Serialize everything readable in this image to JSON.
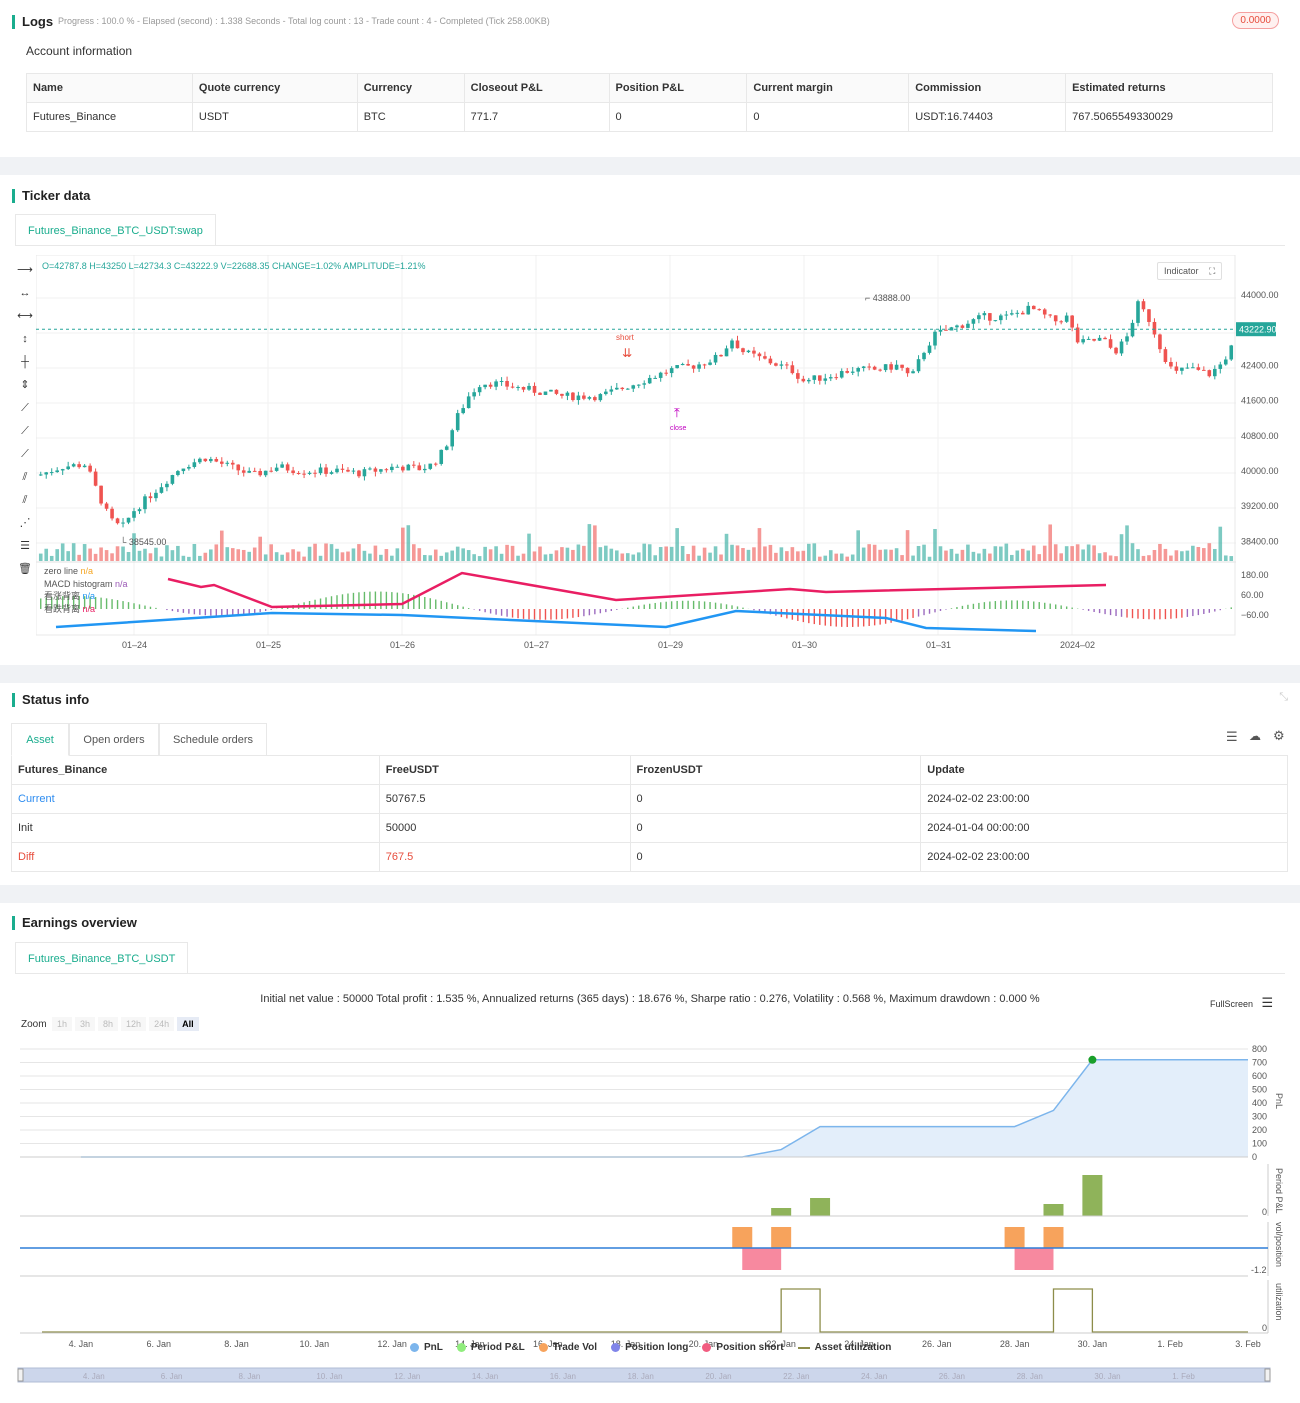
{
  "logs": {
    "title": "Logs",
    "progress": "Progress : 100.0 % - Elapsed (second) : 1.338  Seconds - Total log count : 13 - Trade count : 4 - Completed (Tick 258.00KB)",
    "badge": "0.0000",
    "account_title": "Account information",
    "columns": [
      "Name",
      "Quote currency",
      "Currency",
      "Closeout P&L",
      "Position P&L",
      "Current margin",
      "Commission",
      "Estimated returns"
    ],
    "row": [
      "Futures_Binance",
      "USDT",
      "BTC",
      "771.7",
      "0",
      "0",
      "USDT:16.74403",
      "767.5065549330029"
    ]
  },
  "ticker": {
    "title": "Ticker data",
    "tab": "Futures_Binance_BTC_USDT:swap",
    "ohlc": "O=42787.8 H=43250 L=42734.3 C=43222.9 V=22688.35 CHANGE=1.02% AMPLITUDE=1.21%",
    "indicator_btn": "Indicator",
    "last_price": "43222.90",
    "high_marker": "43888.00",
    "low_marker": "38545.00",
    "short_label": "short",
    "close_label": "close",
    "price_ticks": [
      "44000.00",
      "43200.00",
      "42400.00",
      "41600.00",
      "40800.00",
      "40000.00",
      "39200.00",
      "38400.00"
    ],
    "macd_ticks": [
      "180.00",
      "60.00",
      "−60.00"
    ],
    "date_ticks": [
      "01–24",
      "01–25",
      "01–26",
      "01–27",
      "01–29",
      "01–30",
      "01–31",
      "2024–02"
    ],
    "macd_legend": [
      {
        "name": "zero line",
        "value": "n/a",
        "color": "#f5a623"
      },
      {
        "name": "MACD histogram",
        "value": "n/a",
        "color": "#9b59b6"
      },
      {
        "name": "看涨背离",
        "value": "n/a",
        "color": "#2196f3"
      },
      {
        "name": "看跌背离",
        "value": "n/a",
        "color": "#e91e63"
      }
    ],
    "colors": {
      "up": "#26a69a",
      "down": "#ef5350",
      "accent": "#1aad8e"
    }
  },
  "status": {
    "title": "Status info",
    "tabs": [
      "Asset",
      "Open orders",
      "Schedule orders"
    ],
    "columns": [
      "Futures_Binance",
      "FreeUSDT",
      "FrozenUSDT",
      "Update"
    ],
    "rows": [
      [
        "Current",
        "50767.5",
        "0",
        "2024-02-02 23:00:00"
      ],
      [
        "Init",
        "50000",
        "0",
        "2024-01-04 00:00:00"
      ],
      [
        "Diff",
        "767.5",
        "0",
        "2024-02-02 23:00:00"
      ]
    ]
  },
  "earnings": {
    "title": "Earnings overview",
    "tab": "Futures_Binance_BTC_USDT",
    "summary": "Initial net value : 50000 Total profit : 1.535 %, Annualized returns (365 days) : 18.676 %, Sharpe ratio : 0.276, Volatility : 0.568 %, Maximum drawdown : 0.000 %",
    "fullscreen": "FullScreen",
    "zoom_label": "Zoom",
    "zoom_buttons": [
      "1h",
      "3h",
      "8h",
      "12h",
      "24h",
      "All"
    ],
    "pnl_ticks": [
      "800",
      "700",
      "600",
      "500",
      "400",
      "300",
      "200",
      "100",
      "0"
    ],
    "pnl_axis": "PnL",
    "period_axis": "Period P&L",
    "vol_axis": "vol/position",
    "util_axis": "utilization",
    "period_zero": "0",
    "vol_tick": "-1.2",
    "util_zero": "0",
    "date_ticks": [
      "4. Jan",
      "6. Jan",
      "8. Jan",
      "10. Jan",
      "12. Jan",
      "14. Jan",
      "16. Jan",
      "18. Jan",
      "20. Jan",
      "22. Jan",
      "24. Jan",
      "26. Jan",
      "28. Jan",
      "30. Jan",
      "1. Feb",
      "3. Feb"
    ],
    "legend": [
      {
        "name": "PnL",
        "color": "#7cb5ec"
      },
      {
        "name": "Period P&L",
        "color": "#90ed7d"
      },
      {
        "name": "Trade Vol",
        "color": "#f7a35c"
      },
      {
        "name": "Position long",
        "color": "#8085e9"
      },
      {
        "name": "Position short",
        "color": "#f15c80"
      },
      {
        "name": "Asset utilization",
        "color": "#8d8d4a"
      }
    ],
    "chart_data": {
      "type": "area",
      "x": [
        "2024-01-04",
        "2024-01-21",
        "2024-01-22",
        "2024-01-23",
        "2024-01-28",
        "2024-01-29",
        "2024-01-30",
        "2024-02-03"
      ],
      "series": [
        {
          "name": "PnL",
          "values": [
            0,
            0,
            55,
            225,
            225,
            345,
            720,
            720
          ]
        }
      ],
      "ylim": [
        0,
        800
      ]
    }
  }
}
